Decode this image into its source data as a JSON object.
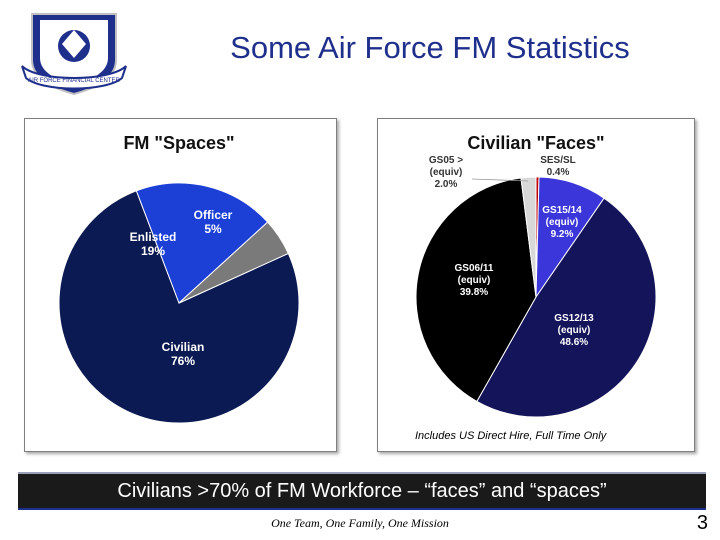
{
  "slide": {
    "title": "Some Air Force FM Statistics",
    "banner": "Civilians >70% of FM Workforce – “faces” and “spaces”",
    "footer_tagline": "One Team, One Family, One Mission",
    "page_number": "3",
    "note": "Includes US Direct Hire, Full Time Only",
    "logo_text": "AIR FORCE FINANCIAL CENTER"
  },
  "colors": {
    "title": "#1f2f8c",
    "civilian": "#0b1a52",
    "enlisted": "#1c3fd6",
    "officer": "#7a7a7a",
    "gs1213": "#14145a",
    "gs0611": "#000000",
    "gs1514": "#3b36d9",
    "gs05": "#d8d8d8",
    "ses": "#c00000"
  },
  "chart_data": [
    {
      "type": "pie",
      "title": "FM \"Spaces\"",
      "slices": [
        {
          "label": "Civilian",
          "value": 76,
          "display": "76%",
          "color": "#0b1a52"
        },
        {
          "label": "Enlisted",
          "value": 19,
          "display": "19%",
          "color": "#1c3fd6"
        },
        {
          "label": "Officer",
          "value": 5,
          "display": "5%",
          "color": "#7a7a7a"
        }
      ]
    },
    {
      "type": "pie",
      "title": "Civilian \"Faces\"",
      "slices": [
        {
          "label": "SES/SL",
          "value": 0.4,
          "display": "0.4%",
          "color": "#c00000"
        },
        {
          "label": "GS15/14 (equiv)",
          "value": 9.2,
          "display": "9.2%",
          "color": "#3b36d9"
        },
        {
          "label": "GS12/13 (equiv)",
          "value": 48.6,
          "display": "48.6%",
          "color": "#14145a"
        },
        {
          "label": "GS06/11 (equiv)",
          "value": 39.8,
          "display": "39.8%",
          "color": "#000000"
        },
        {
          "label": "GS05 > (equiv)",
          "value": 2.0,
          "display": "2.0%",
          "color": "#d8d8d8"
        }
      ]
    }
  ]
}
